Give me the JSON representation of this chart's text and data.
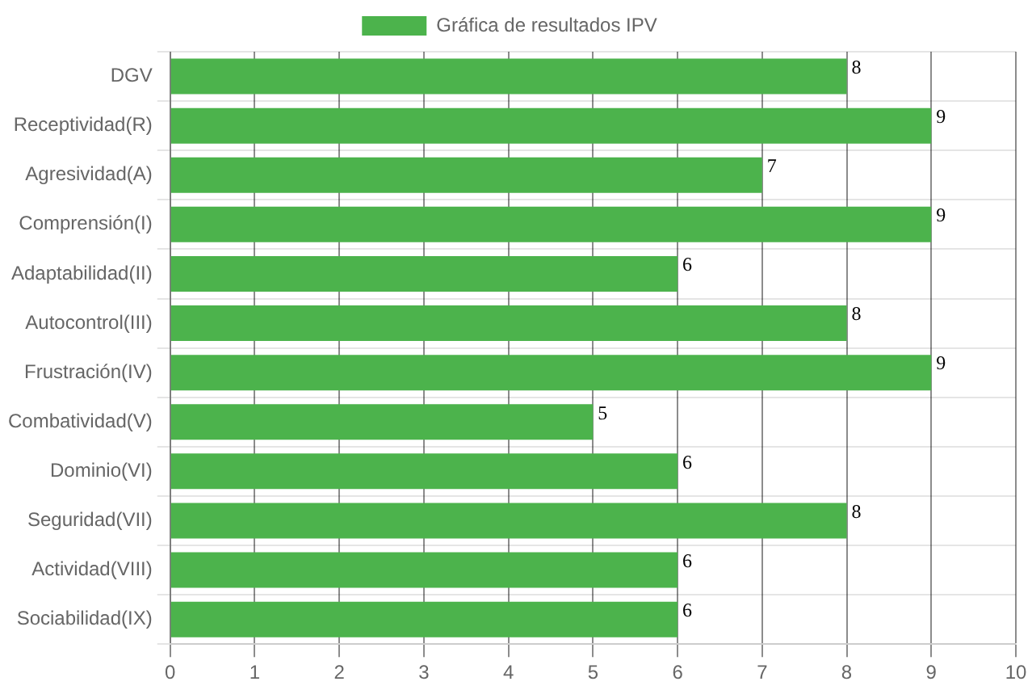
{
  "chart_data": {
    "type": "bar",
    "orientation": "horizontal",
    "categories": [
      "DGV",
      "Receptividad(R)",
      "Agresividad(A)",
      "Comprensión(I)",
      "Adaptabilidad(II)",
      "Autocontrol(III)",
      "Frustración(IV)",
      "Combatividad(V)",
      "Dominio(VI)",
      "Seguridad(VII)",
      "Actividad(VIII)",
      "Sociabilidad(IX)"
    ],
    "series": [
      {
        "name": "Gráfica de resultados IPV",
        "color": "#4cb34c",
        "values": [
          8,
          9,
          7,
          9,
          6,
          8,
          9,
          5,
          6,
          8,
          6,
          6
        ]
      }
    ],
    "xlim": [
      0,
      10
    ],
    "xticks": [
      0,
      1,
      2,
      3,
      4,
      5,
      6,
      7,
      8,
      9,
      10
    ],
    "grid": true,
    "legend": "top",
    "data_labels": true
  }
}
